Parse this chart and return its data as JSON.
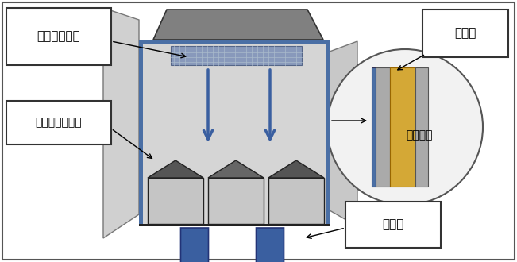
{
  "bg_color": "#ffffff",
  "blue_wall": "#4a6fa5",
  "dark_gray": "#555555",
  "mid_gray": "#888888",
  "light_gray": "#cccccc",
  "lighter_gray": "#dedede",
  "very_light_gray": "#ebebeb",
  "arrow_blue": "#3a5fa0",
  "gold_color": "#d4a836",
  "evap_blue": "#8899bb",
  "labels": {
    "top_left": "庫内の仕組み",
    "left": "エバポレーター",
    "top_right": "断熱材",
    "right_circle": "壁内拡大",
    "bottom_right": "冷　気"
  }
}
